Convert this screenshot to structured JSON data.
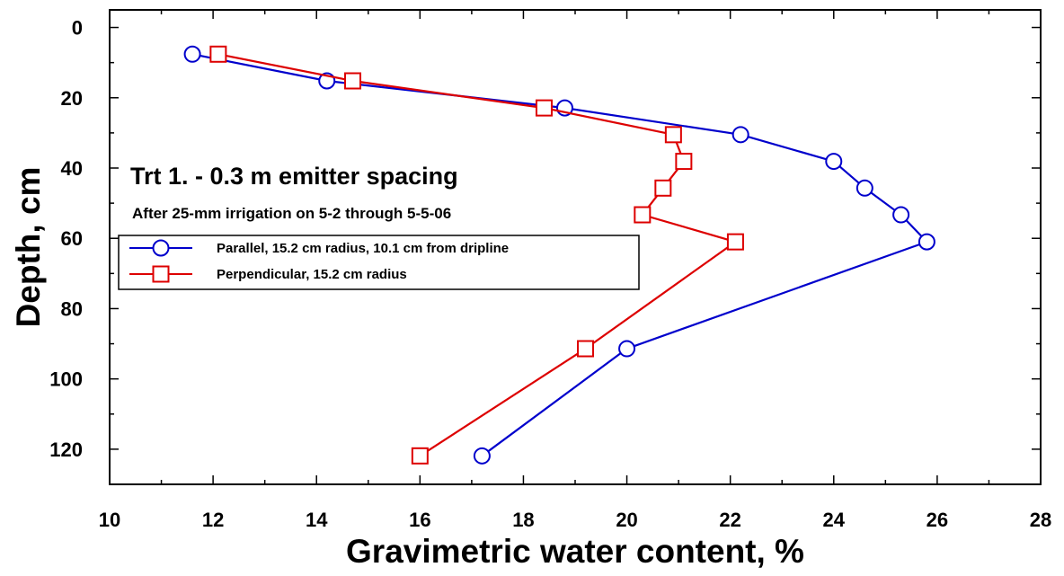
{
  "chart_data": {
    "type": "line",
    "xlabel": "Gravimetric water content, %",
    "ylabel": "Depth, cm",
    "xlim": [
      10,
      28
    ],
    "ylim": [
      -5,
      130
    ],
    "y_inverted": true,
    "x_ticks": [
      10,
      12,
      14,
      16,
      18,
      20,
      22,
      24,
      26,
      28
    ],
    "y_ticks": [
      0,
      20,
      40,
      60,
      80,
      100,
      120
    ],
    "grid": false,
    "legend_position": "left",
    "annotations": {
      "title": "Trt 1. - 0.3 m emitter spacing",
      "subtitle": "After 25-mm irrigation on 5-2 through 5-5-06"
    },
    "series": [
      {
        "name": "Parallel, 15.2 cm radius, 10.1 cm from dripline",
        "color": "#0000cc",
        "marker": "circle",
        "x": [
          11.6,
          14.2,
          18.8,
          22.2,
          24.0,
          24.6,
          25.3,
          25.8,
          20.0,
          17.2
        ],
        "y": [
          7.6,
          15.2,
          22.9,
          30.5,
          38.1,
          45.7,
          53.3,
          61.0,
          91.4,
          121.9
        ]
      },
      {
        "name": "Perpendicular, 15.2 cm radius",
        "color": "#dd0000",
        "marker": "square",
        "x": [
          12.1,
          14.7,
          18.4,
          20.9,
          21.1,
          20.7,
          20.3,
          22.1,
          19.2,
          16.0
        ],
        "y": [
          7.6,
          15.2,
          22.9,
          30.5,
          38.1,
          45.7,
          53.3,
          61.0,
          91.4,
          121.9
        ]
      }
    ]
  }
}
